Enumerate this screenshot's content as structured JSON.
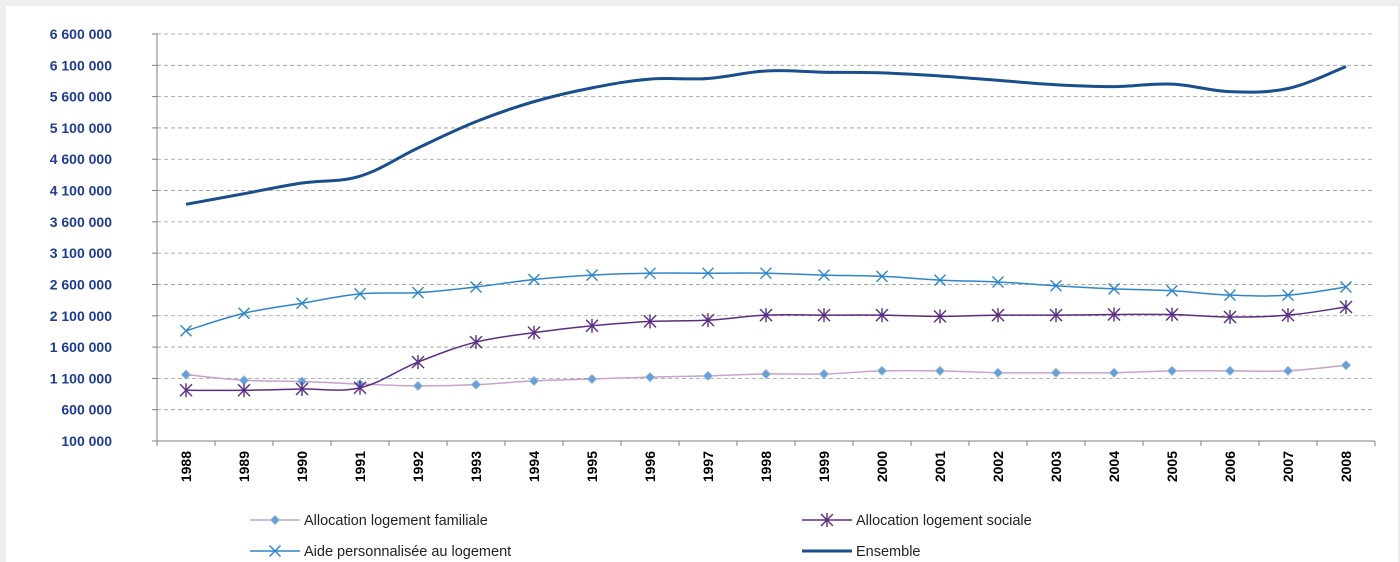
{
  "chart_data": {
    "type": "line",
    "title": "",
    "xlabel": "",
    "ylabel": "",
    "ylim": [
      100000,
      6600000
    ],
    "y_ticks": [
      100000,
      600000,
      1100000,
      1600000,
      2100000,
      2600000,
      3100000,
      3600000,
      4100000,
      4600000,
      5100000,
      5600000,
      6100000,
      6600000
    ],
    "y_tick_labels": [
      "100 000",
      "600 000",
      "1 100 000",
      "1 600 000",
      "2 100 000",
      "2 600 000",
      "3 100 000",
      "3 600 000",
      "4 100 000",
      "4 600 000",
      "5 100 000",
      "5 600 000",
      "6 100 000",
      "6 600 000"
    ],
    "categories": [
      "1988",
      "1989",
      "1990",
      "1991",
      "1992",
      "1993",
      "1994",
      "1995",
      "1996",
      "1997",
      "1998",
      "1999",
      "2000",
      "2001",
      "2002",
      "2003",
      "2004",
      "2005",
      "2006",
      "2007",
      "2008"
    ],
    "grid": "horizontal dashed",
    "legend_position": "bottom",
    "series": [
      {
        "name": "Allocation logement familiale",
        "color": "#c8a2c8",
        "marker": "diamond",
        "marker_color": "#6a9fd4",
        "values": [
          1160000,
          1070000,
          1050000,
          1010000,
          980000,
          1000000,
          1060000,
          1090000,
          1120000,
          1140000,
          1170000,
          1170000,
          1220000,
          1220000,
          1190000,
          1190000,
          1190000,
          1220000,
          1220000,
          1220000,
          1310000
        ]
      },
      {
        "name": "Allocation logement sociale",
        "color": "#5b2d82",
        "marker": "asterisk",
        "values": [
          910000,
          910000,
          930000,
          950000,
          1360000,
          1680000,
          1830000,
          1940000,
          2010000,
          2030000,
          2110000,
          2110000,
          2110000,
          2090000,
          2110000,
          2110000,
          2120000,
          2120000,
          2080000,
          2110000,
          2240000
        ]
      },
      {
        "name": "Aide personnalisée au logement",
        "color": "#2e86c8",
        "marker": "x",
        "values": [
          1860000,
          2140000,
          2300000,
          2450000,
          2470000,
          2560000,
          2680000,
          2750000,
          2780000,
          2780000,
          2780000,
          2750000,
          2730000,
          2670000,
          2640000,
          2580000,
          2530000,
          2500000,
          2430000,
          2430000,
          2560000
        ]
      },
      {
        "name": "Ensemble",
        "color": "#1a4e8c",
        "marker": "none",
        "values": [
          3880000,
          4050000,
          4220000,
          4330000,
          4780000,
          5200000,
          5520000,
          5740000,
          5880000,
          5890000,
          6010000,
          5990000,
          5980000,
          5930000,
          5860000,
          5790000,
          5760000,
          5800000,
          5680000,
          5730000,
          6080000
        ]
      }
    ]
  }
}
